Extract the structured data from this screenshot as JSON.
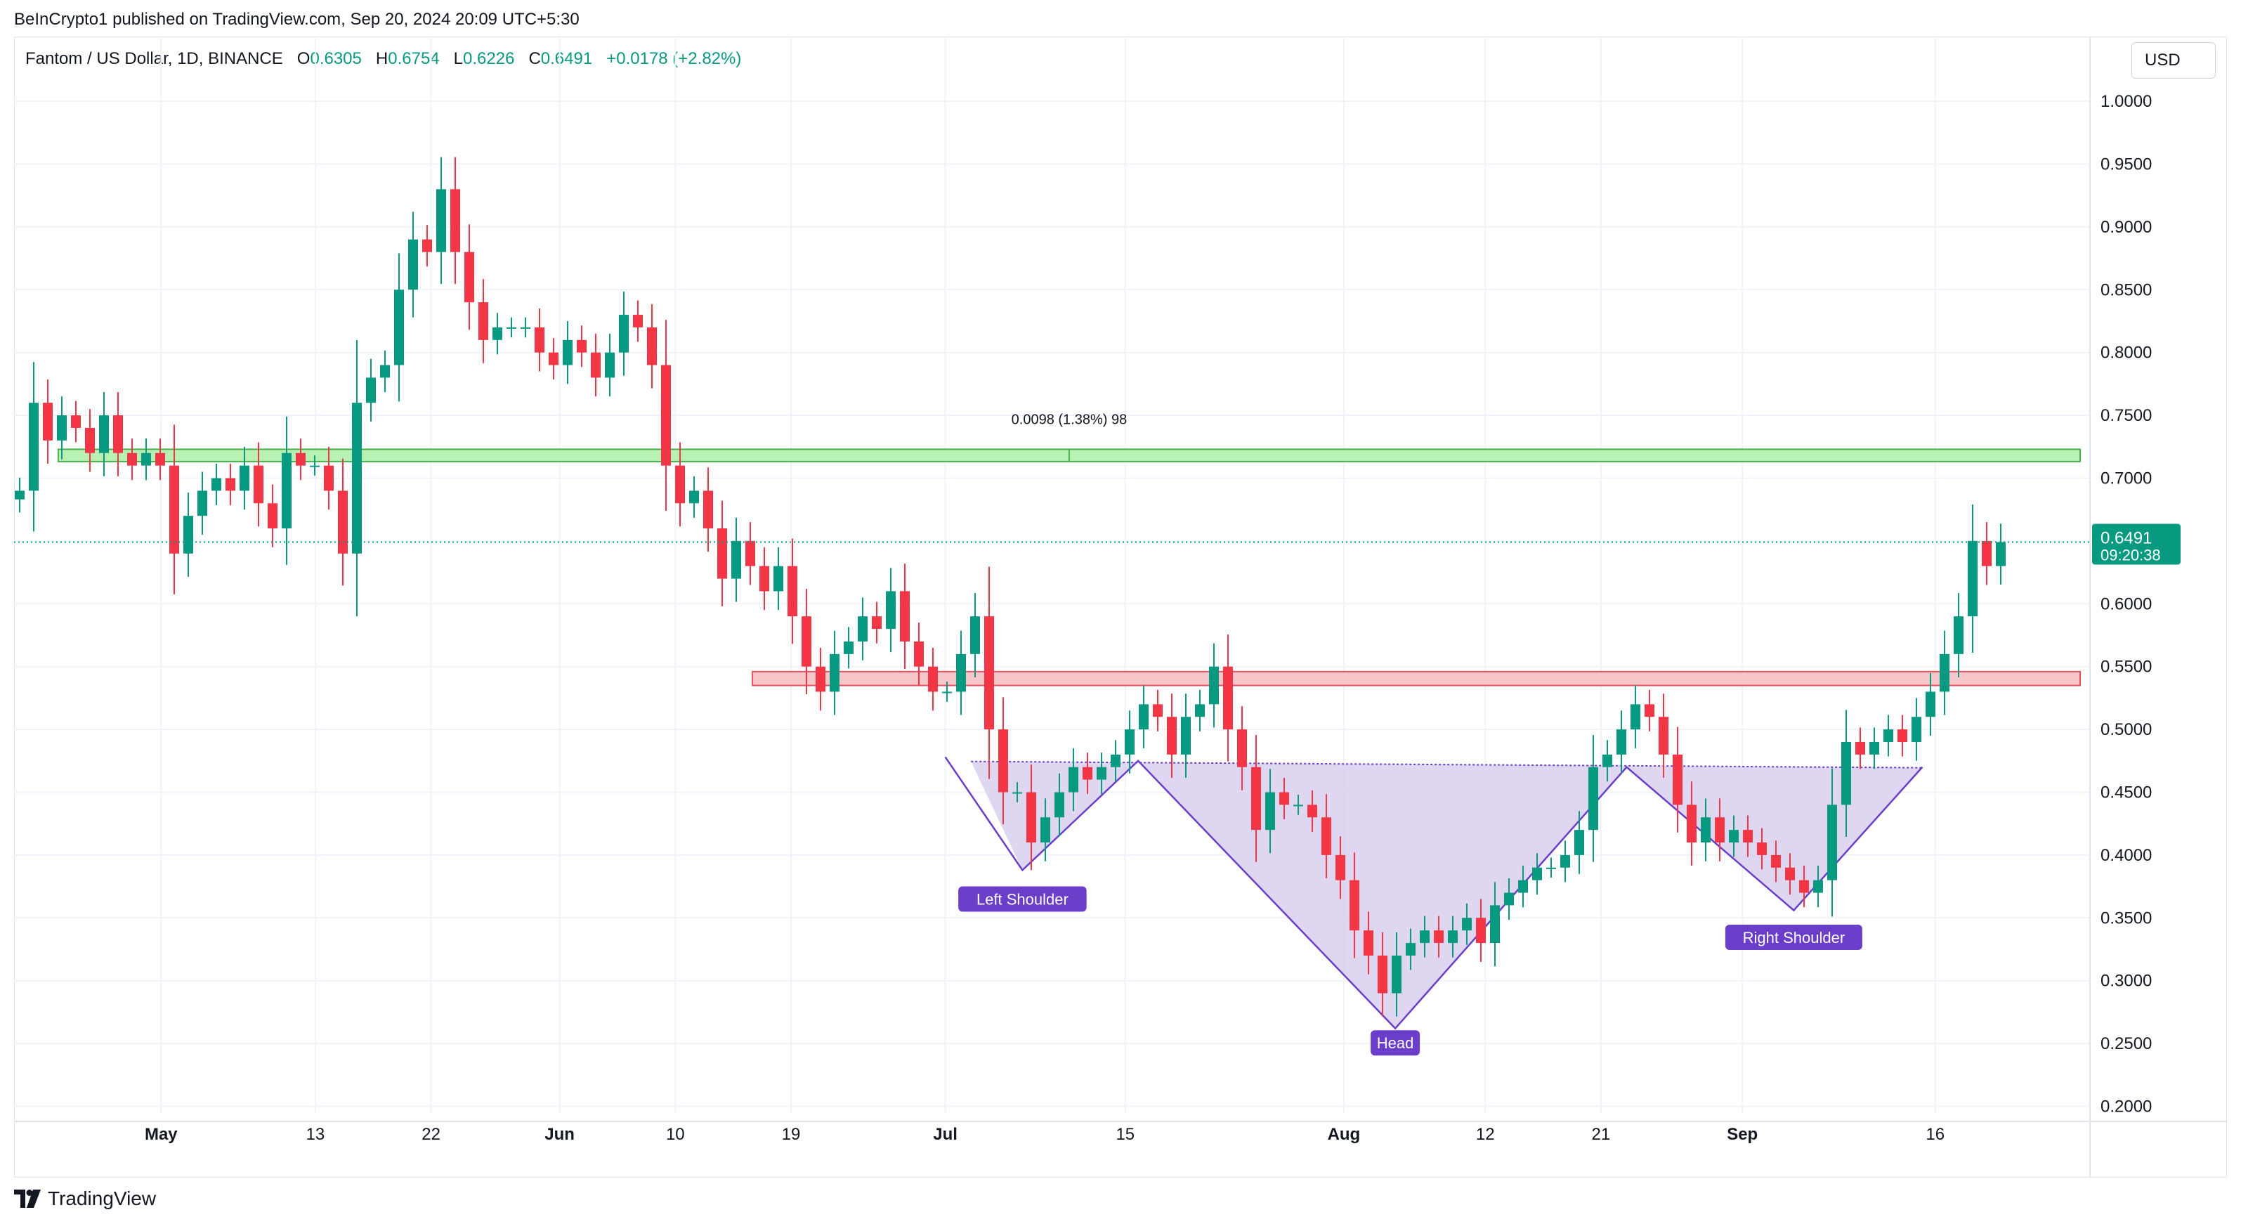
{
  "header": {
    "published_by": "BeInCrypto1 published on TradingView.com, Sep 20, 2024 20:09 UTC+5:30"
  },
  "legend": {
    "symbol": "Fantom / US Dollar, 1D, BINANCE",
    "o_label": "O",
    "o_value": "0.6305",
    "h_label": "H",
    "h_value": "0.6754",
    "l_label": "L",
    "l_value": "0.6226",
    "c_label": "C",
    "c_value": "0.6491",
    "change": "+0.0178 (+2.82%)"
  },
  "currency_button": "USD",
  "footer": {
    "brand": "TradingView"
  },
  "colors": {
    "up": "#089981",
    "down": "#f23645",
    "pattern": "#6a3ec8",
    "pattern_fill": "#d9cff0",
    "resistance": "#f7c6cb",
    "resistance_line": "#e8505b",
    "support": "#b9f0b4",
    "support_line": "#4caf50"
  },
  "chart_data": {
    "type": "candlestick",
    "y_scale": "linear",
    "ylim": [
      0.18,
      1.02
    ],
    "y_ticks": [
      "1.0000",
      "0.9500",
      "0.9000",
      "0.8500",
      "0.8000",
      "0.7500",
      "0.7000",
      "0.6500",
      "0.6000",
      "0.5500",
      "0.5000",
      "0.4500",
      "0.4000",
      "0.3500",
      "0.3000",
      "0.2500",
      "0.2000"
    ],
    "x_ticks": [
      {
        "label": "May",
        "date": "2024-05-01",
        "bold": true
      },
      {
        "label": "13",
        "date": "2024-05-13",
        "bold": false
      },
      {
        "label": "22",
        "date": "2024-05-22",
        "bold": false
      },
      {
        "label": "Jun",
        "date": "2024-06-01",
        "bold": true
      },
      {
        "label": "10",
        "date": "2024-06-10",
        "bold": false
      },
      {
        "label": "19",
        "date": "2024-06-19",
        "bold": false
      },
      {
        "label": "Jul",
        "date": "2024-07-01",
        "bold": true
      },
      {
        "label": "15",
        "date": "2024-07-15",
        "bold": false
      },
      {
        "label": "Aug",
        "date": "2024-08-01",
        "bold": true
      },
      {
        "label": "12",
        "date": "2024-08-12",
        "bold": false
      },
      {
        "label": "21",
        "date": "2024-08-21",
        "bold": false
      },
      {
        "label": "Sep",
        "date": "2024-09-01",
        "bold": true
      },
      {
        "label": "16",
        "date": "2024-09-16",
        "bold": false
      }
    ],
    "first_date": "2024-04-20",
    "last_date": "2024-09-20",
    "closes": [
      0.69,
      0.76,
      0.73,
      0.75,
      0.74,
      0.72,
      0.75,
      0.72,
      0.71,
      0.72,
      0.71,
      0.64,
      0.67,
      0.69,
      0.7,
      0.69,
      0.71,
      0.68,
      0.66,
      0.72,
      0.71,
      0.71,
      0.69,
      0.64,
      0.76,
      0.78,
      0.79,
      0.85,
      0.89,
      0.88,
      0.93,
      0.88,
      0.84,
      0.81,
      0.82,
      0.82,
      0.82,
      0.8,
      0.79,
      0.81,
      0.8,
      0.78,
      0.8,
      0.83,
      0.82,
      0.79,
      0.71,
      0.68,
      0.69,
      0.66,
      0.62,
      0.65,
      0.63,
      0.61,
      0.63,
      0.59,
      0.55,
      0.53,
      0.56,
      0.57,
      0.59,
      0.58,
      0.61,
      0.57,
      0.55,
      0.53,
      0.53,
      0.56,
      0.59,
      0.5,
      0.45,
      0.45,
      0.41,
      0.43,
      0.45,
      0.47,
      0.46,
      0.47,
      0.48,
      0.5,
      0.52,
      0.51,
      0.48,
      0.51,
      0.52,
      0.55,
      0.5,
      0.47,
      0.42,
      0.45,
      0.44,
      0.44,
      0.43,
      0.4,
      0.38,
      0.34,
      0.32,
      0.29,
      0.32,
      0.33,
      0.34,
      0.33,
      0.34,
      0.35,
      0.33,
      0.36,
      0.37,
      0.38,
      0.39,
      0.39,
      0.4,
      0.42,
      0.47,
      0.48,
      0.5,
      0.52,
      0.51,
      0.48,
      0.44,
      0.41,
      0.43,
      0.41,
      0.42,
      0.41,
      0.4,
      0.39,
      0.38,
      0.37,
      0.38,
      0.44,
      0.49,
      0.48,
      0.49,
      0.5,
      0.49,
      0.51,
      0.53,
      0.56,
      0.59,
      0.65,
      0.63,
      0.6491
    ],
    "price_tag": {
      "value": "0.6491",
      "countdown": "09:20:38"
    },
    "zones": [
      {
        "kind": "support",
        "from": "2024-04-23",
        "y_low": 0.7132,
        "y_high": 0.723,
        "label": "0.0098 (1.38%) 98"
      },
      {
        "kind": "resistance",
        "from": "2024-06-16",
        "y_low": 0.535,
        "y_high": 0.546
      }
    ],
    "pattern": {
      "name": "inverse head and shoulders",
      "neckline": [
        {
          "date": "2024-07-03",
          "y": 0.4745
        },
        {
          "date": "2024-09-15",
          "y": 0.4695
        }
      ],
      "points": [
        {
          "date": "2024-07-01",
          "y": 0.478
        },
        {
          "date": "2024-07-07",
          "y": 0.388
        },
        {
          "date": "2024-07-16",
          "y": 0.475
        },
        {
          "date": "2024-08-05",
          "y": 0.262
        },
        {
          "date": "2024-08-23",
          "y": 0.47
        },
        {
          "date": "2024-09-05",
          "y": 0.356
        },
        {
          "date": "2024-09-15",
          "y": 0.47
        }
      ],
      "labels": [
        {
          "text": "Left Shoulder",
          "date": "2024-07-07",
          "y": 0.365
        },
        {
          "text": "Head",
          "date": "2024-08-05",
          "y": 0.2505
        },
        {
          "text": "Right Shoulder",
          "date": "2024-09-05",
          "y": 0.3345
        }
      ]
    }
  }
}
